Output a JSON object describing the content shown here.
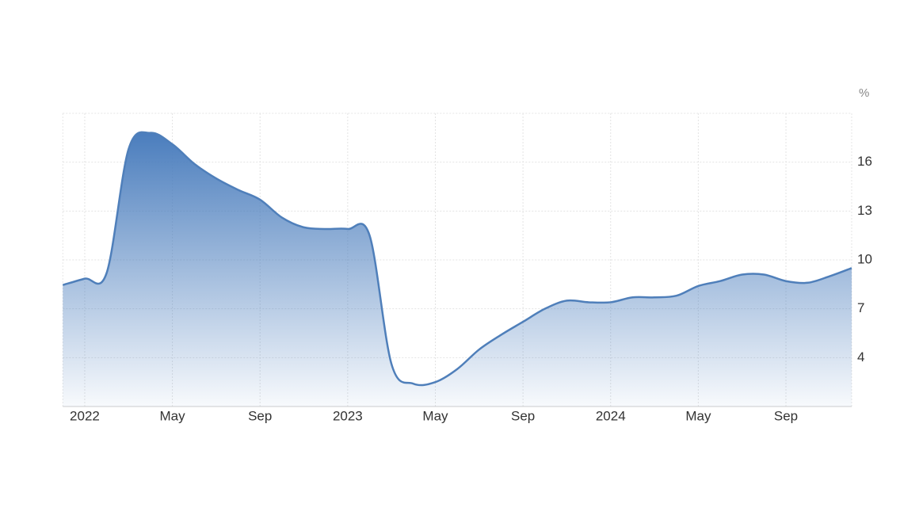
{
  "chart_data": {
    "type": "area",
    "y_label": "%",
    "categories": [
      null,
      "2022",
      null,
      null,
      null,
      "May",
      null,
      null,
      null,
      "Sep",
      null,
      null,
      null,
      "2023",
      null,
      null,
      null,
      "May",
      null,
      null,
      null,
      "Sep",
      null,
      null,
      null,
      "2024",
      null,
      null,
      null,
      "May",
      null,
      null,
      null,
      "Sep",
      null,
      null,
      null
    ],
    "values": [
      8.46,
      8.85,
      9.2,
      16.8,
      17.8,
      17.1,
      15.9,
      15.0,
      14.3,
      13.7,
      12.6,
      12.0,
      11.9,
      11.9,
      11.5,
      3.6,
      2.4,
      2.5,
      3.3,
      4.5,
      5.4,
      6.2,
      7.0,
      7.5,
      7.4,
      7.4,
      7.7,
      7.7,
      7.8,
      8.4,
      8.7,
      9.1,
      9.1,
      8.7,
      8.6,
      9.0,
      9.5
    ],
    "color": "#4f7fba",
    "ylim": [
      1,
      19
    ],
    "yticks": [
      4,
      7,
      10,
      13,
      16
    ],
    "grid": true
  }
}
